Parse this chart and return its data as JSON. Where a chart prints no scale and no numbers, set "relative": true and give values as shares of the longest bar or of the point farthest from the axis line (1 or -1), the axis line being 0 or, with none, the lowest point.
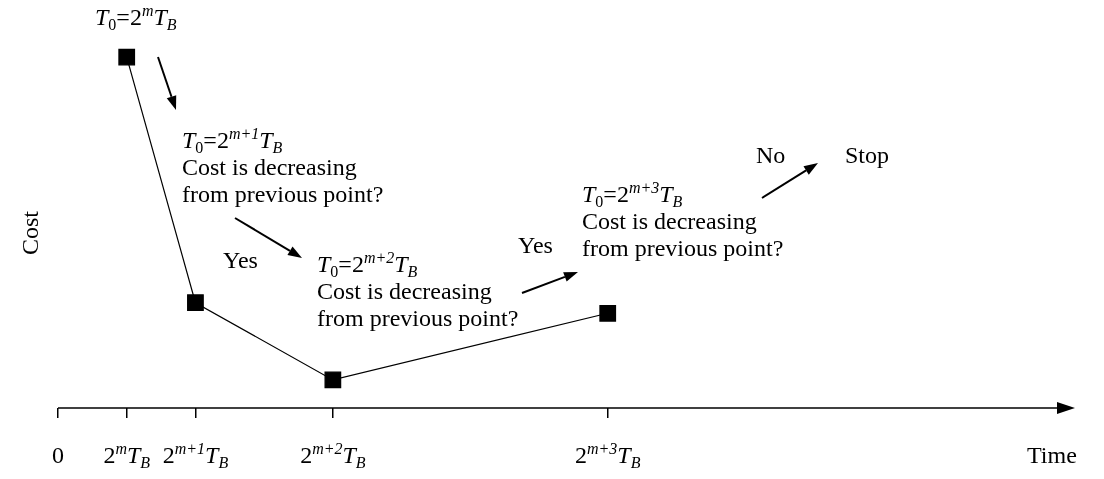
{
  "chart_data": {
    "type": "line",
    "relative": true,
    "ylabel": "Cost",
    "categories": [
      "0",
      "2$^{m}$T$_{B}$",
      "2$^{m+1}$T$_{B}$",
      "2$^{m+2}$T$_{B}$",
      "2$^{m+3}$T$_{B}$"
    ],
    "series": [
      {
        "color": "#000000",
        "values": [
          null,
          1,
          0.3,
          0.08,
          0.27
        ]
      }
    ],
    "marker": "square",
    "line_style": "solid",
    "grid": false,
    "legend": false,
    "annotations": [
      "Time",
      "T$_{0}$=2$^{m}$T$_{B}$",
      "T$_{0}$=2$^{m+1}$T$_{B}$\nCost is decreasing\nfrom previous point?",
      "T$_{0}$=2$^{m+2}$T$_{B}$\nCost is decreasing\nfrom previous point?",
      "T$_{0}$=2$^{m+3}$T$_{B}$\nCost is decreasing\nfrom previous point?",
      "Yes",
      "Yes",
      "No",
      "Stop"
    ]
  }
}
